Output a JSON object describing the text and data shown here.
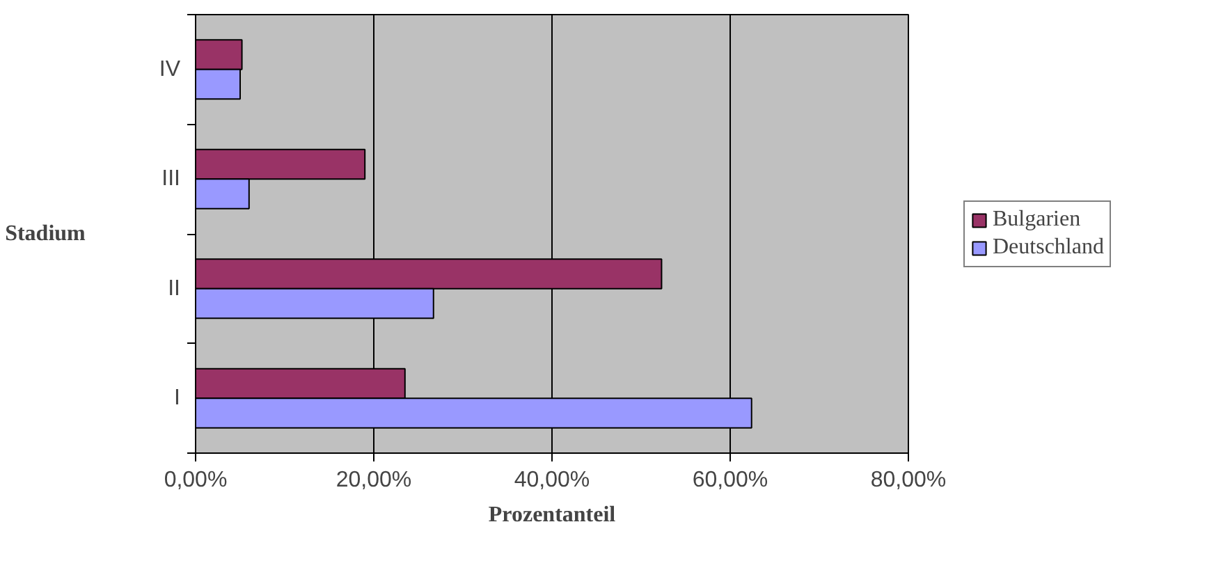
{
  "chart_data": {
    "type": "bar",
    "orientation": "horizontal",
    "xlabel": "Prozentanteil",
    "ylabel": "Stadium",
    "categories": [
      "IV",
      "III",
      "II",
      "I"
    ],
    "series": [
      {
        "name": "Bulgarien",
        "color": "#993366",
        "values": [
          5.2,
          19.0,
          52.3,
          23.5
        ]
      },
      {
        "name": "Deutschland",
        "color": "#9999ff",
        "values": [
          5.0,
          6.0,
          26.7,
          62.4
        ]
      }
    ],
    "xlim": [
      0,
      80
    ],
    "xticks": [
      {
        "value": 0,
        "label": "0,00%"
      },
      {
        "value": 20,
        "label": "20,00%"
      },
      {
        "value": 40,
        "label": "40,00%"
      },
      {
        "value": 60,
        "label": "60,00%"
      },
      {
        "value": 80,
        "label": "80,00%"
      }
    ],
    "grid": "x",
    "legend": "right"
  }
}
